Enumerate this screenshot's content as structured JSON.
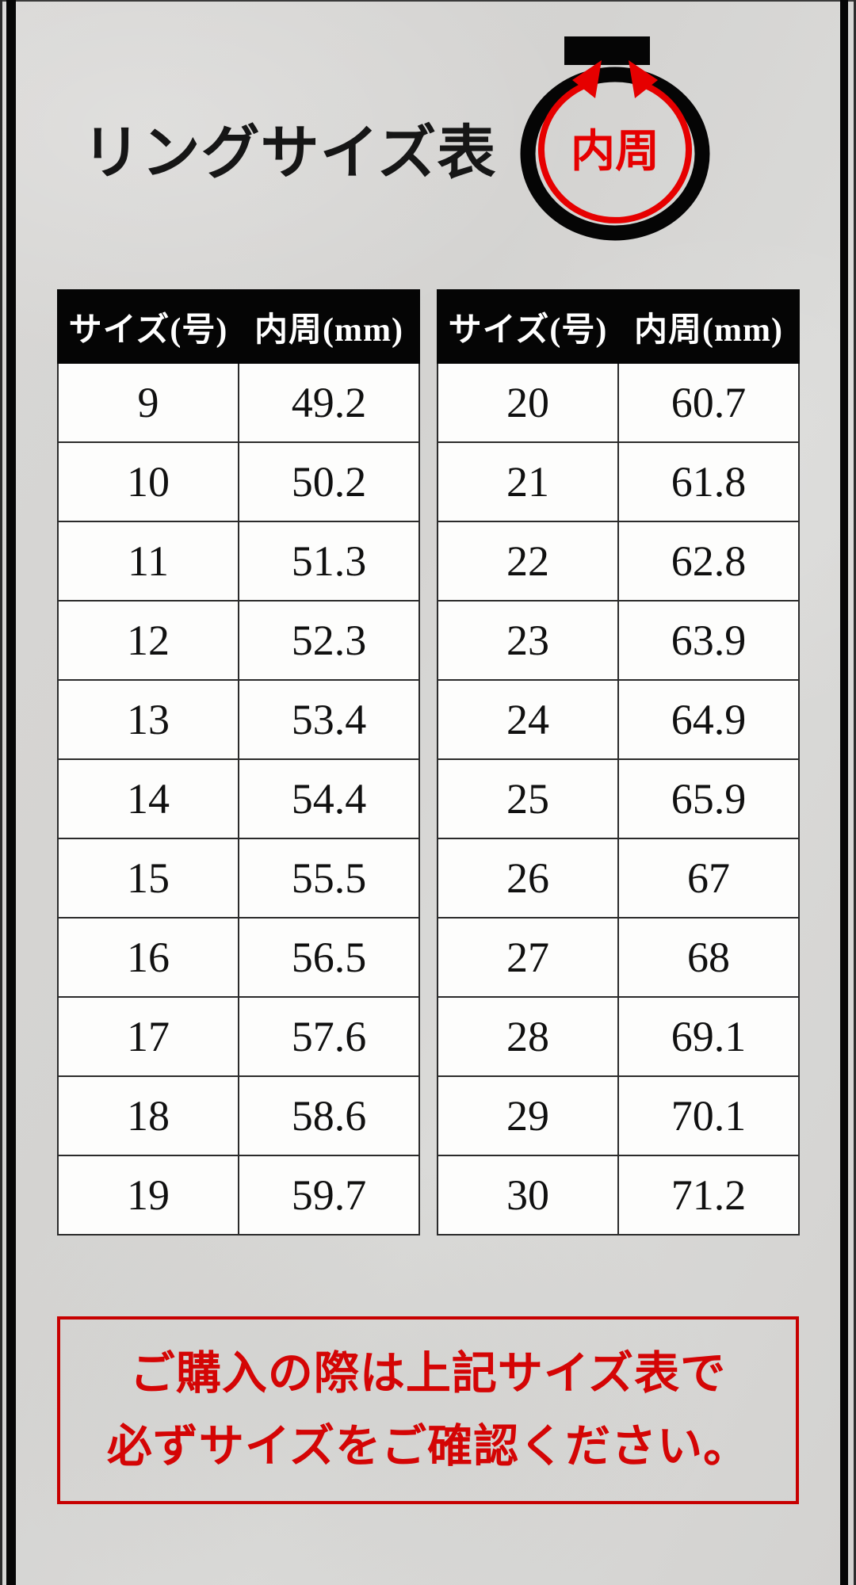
{
  "title": "リングサイズ表",
  "ring_diagram": {
    "label": "内周"
  },
  "chart_data": {
    "type": "table",
    "title": "リングサイズ表",
    "columns": [
      "サイズ(号)",
      "内周(mm)"
    ],
    "tables": [
      {
        "sizes": [
          9,
          10,
          11,
          12,
          13,
          14,
          15,
          16,
          17,
          18,
          19
        ],
        "inner_circumference_mm": [
          49.2,
          50.2,
          51.3,
          52.3,
          53.4,
          54.4,
          55.5,
          56.5,
          57.6,
          58.6,
          59.7
        ]
      },
      {
        "sizes": [
          20,
          21,
          22,
          23,
          24,
          25,
          26,
          27,
          28,
          29,
          30
        ],
        "inner_circumference_mm": [
          60.7,
          61.8,
          62.8,
          63.9,
          64.9,
          65.9,
          67,
          68,
          69.1,
          70.1,
          71.2
        ]
      }
    ]
  },
  "notice": {
    "line1": "ご購入の際は上記サイズ表で",
    "line2": "必ずサイズをご確認ください。"
  },
  "colors": {
    "accent_red": "#d40505",
    "ring_red": "#e60000",
    "table_header_bg": "#050505",
    "background_gray": "#d6d5d3"
  }
}
